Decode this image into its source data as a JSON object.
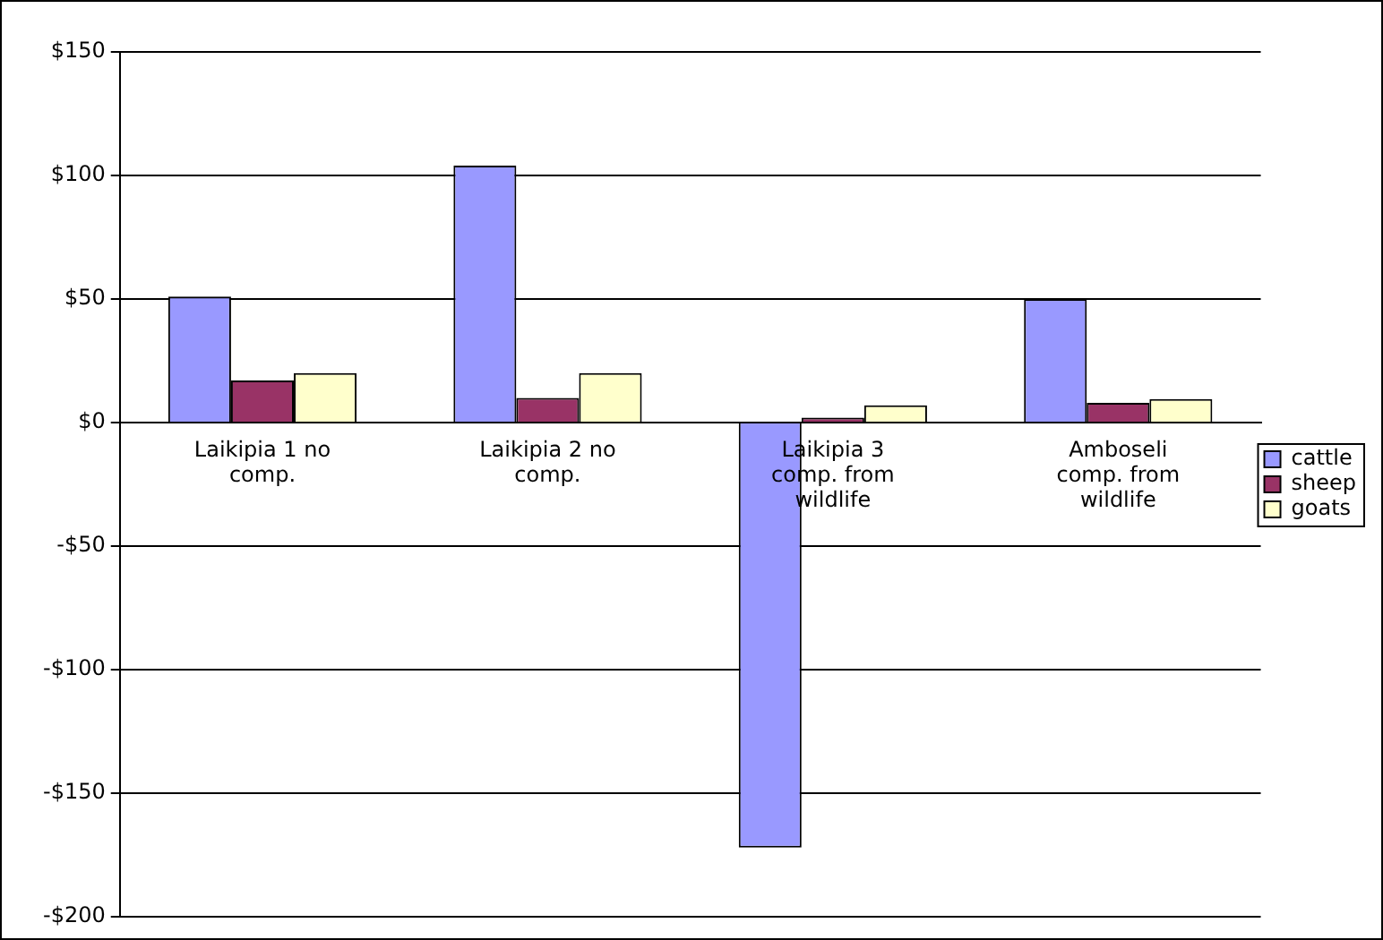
{
  "chart_data": {
    "type": "bar",
    "categories": [
      "Laikipia 1 no comp.",
      "Laikipia 2 no comp.",
      "Laikipia 3 comp. from wildlife",
      "Amboseli comp. from wildlife"
    ],
    "series": [
      {
        "name": "cattle",
        "color": "#9999ff",
        "values": [
          51,
          104,
          -172,
          50
        ]
      },
      {
        "name": "sheep",
        "color": "#993366",
        "values": [
          17,
          10,
          2,
          8
        ]
      },
      {
        "name": "goats",
        "color": "#ffffcc",
        "values": [
          20,
          20,
          7,
          9.5
        ]
      }
    ],
    "ylim": [
      -200,
      150
    ],
    "yticks": [
      {
        "value": -200,
        "label": "-$200"
      },
      {
        "value": -150,
        "label": "-$150"
      },
      {
        "value": -100,
        "label": "-$100"
      },
      {
        "value": -50,
        "label": "-$50"
      },
      {
        "value": 0,
        "label": "$0"
      },
      {
        "value": 50,
        "label": "$50"
      },
      {
        "value": 100,
        "label": "$100"
      },
      {
        "value": 150,
        "label": "$150"
      }
    ],
    "grid": "y",
    "legend": "right"
  }
}
